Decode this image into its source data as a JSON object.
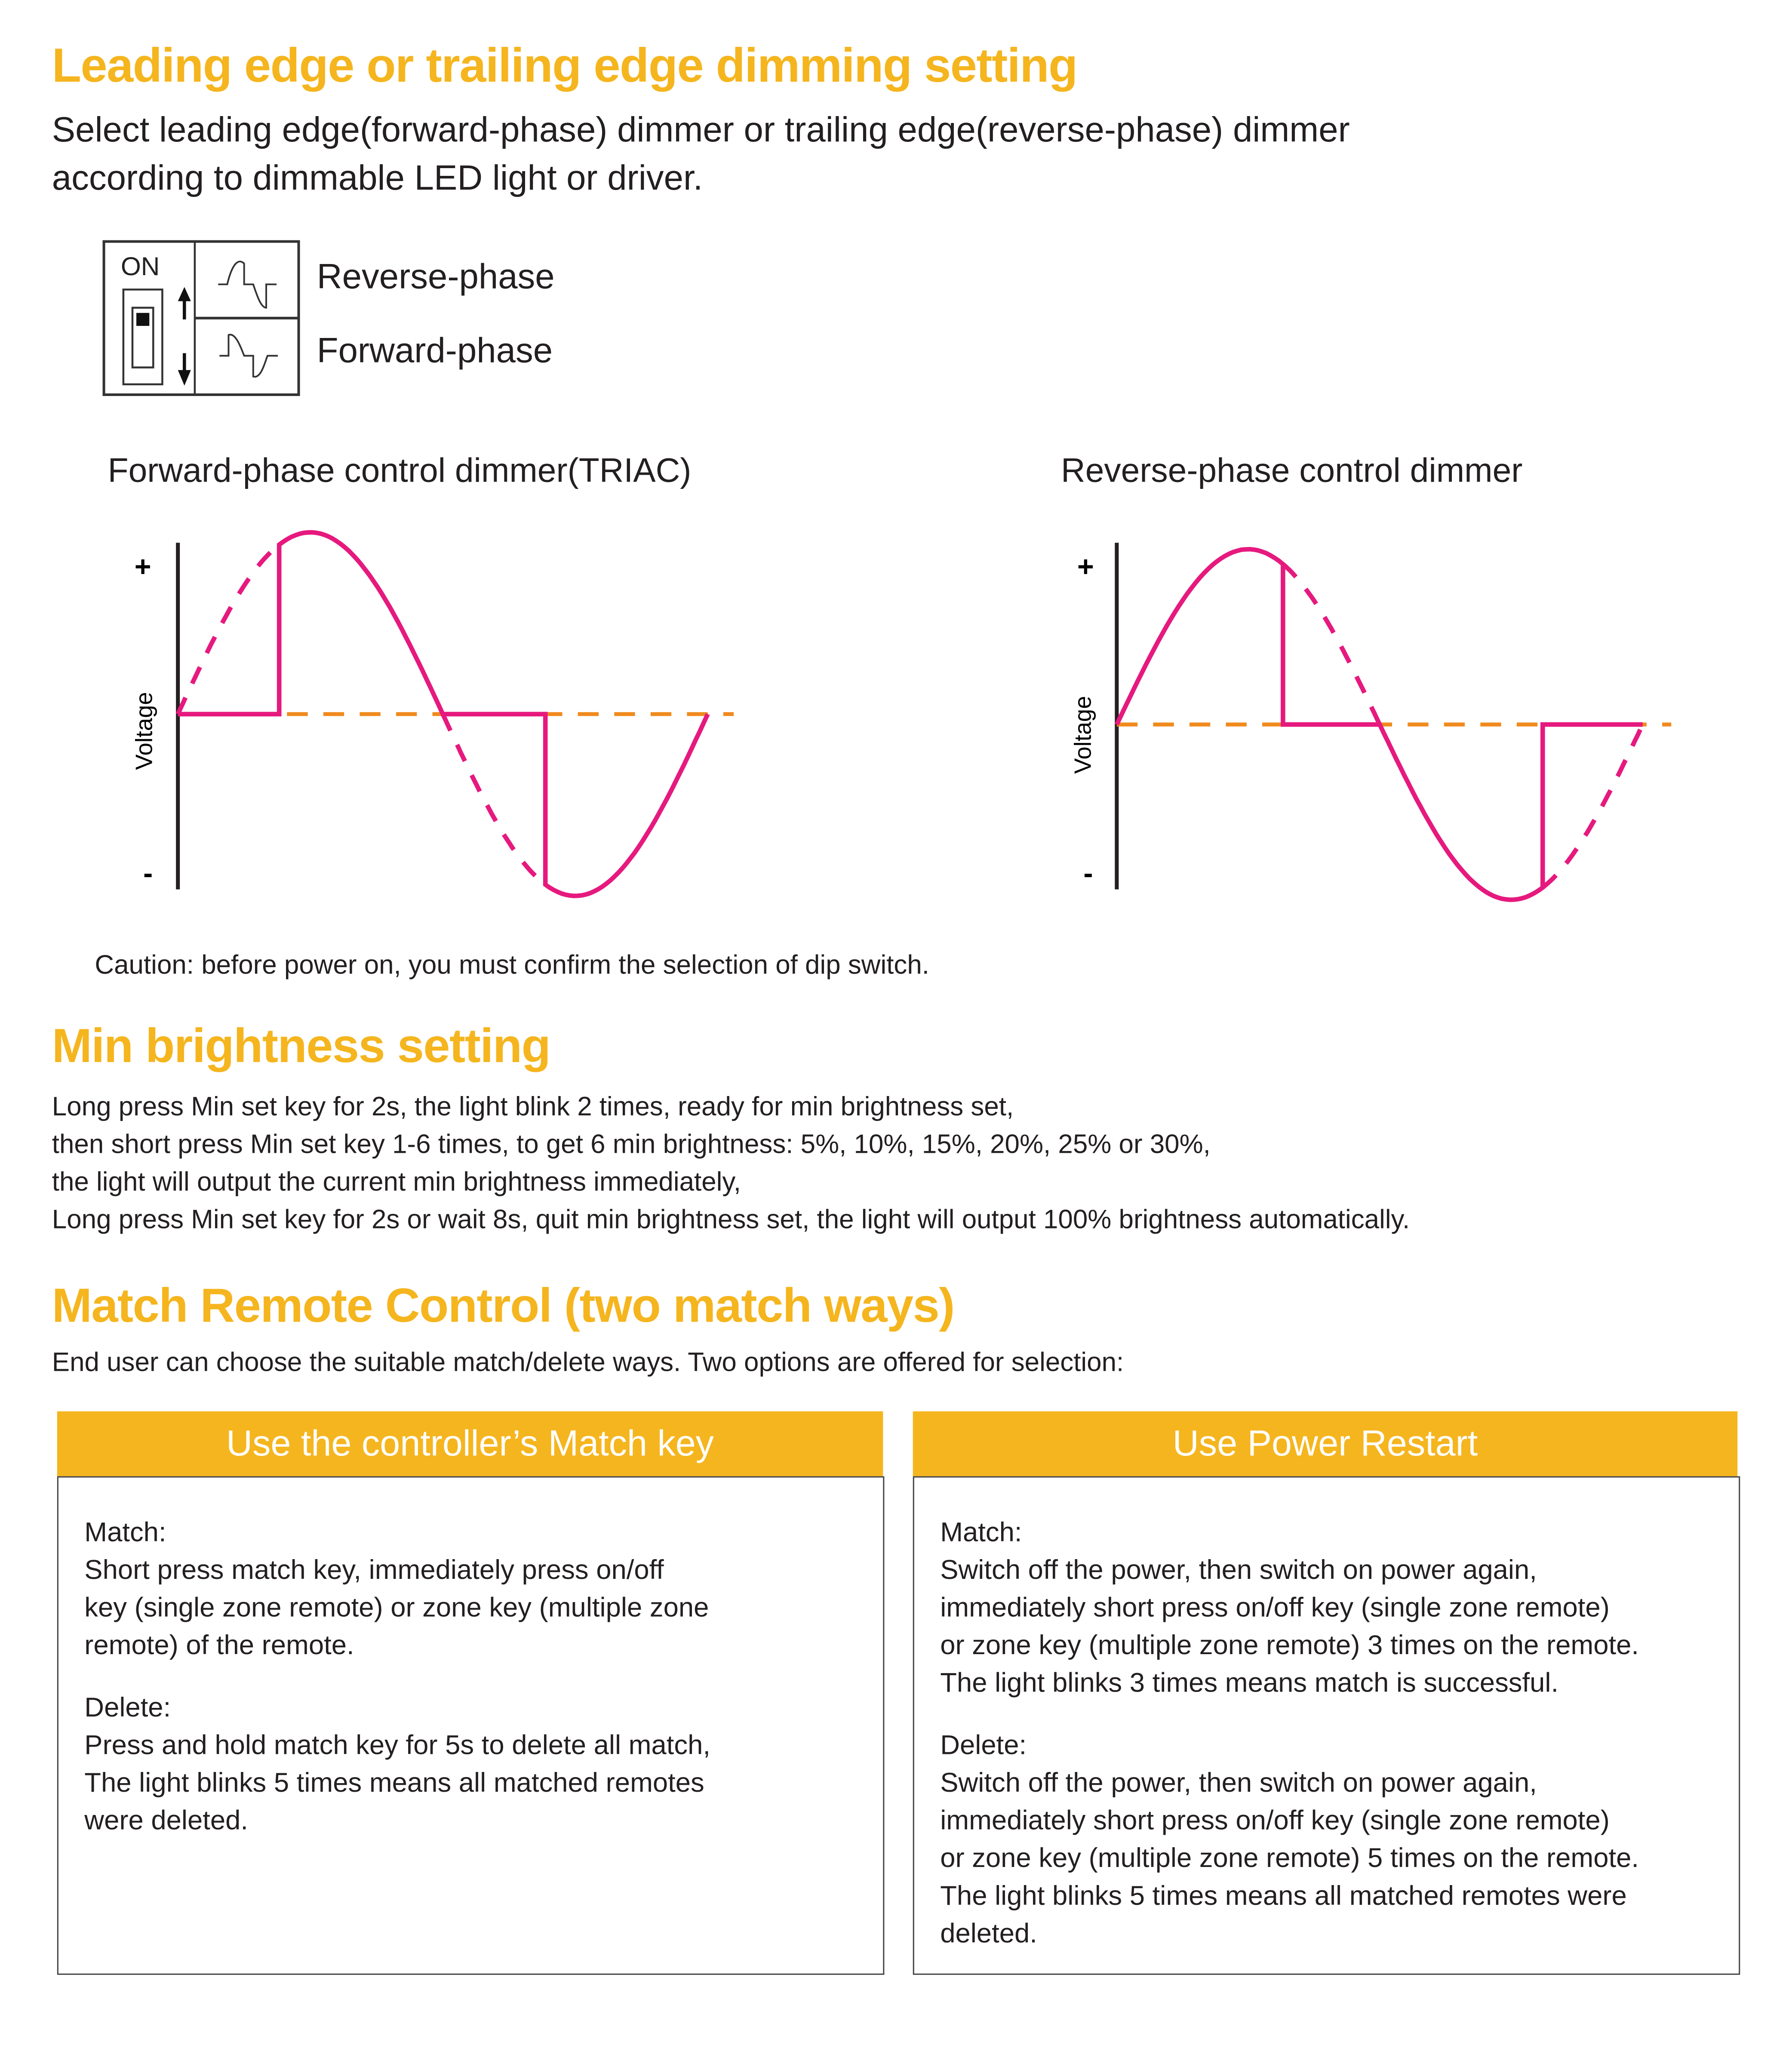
{
  "section1": {
    "title": "Leading edge or trailing edge dimming setting",
    "description_line1": "Select leading edge(forward-phase) dimmer or trailing edge(reverse-phase) dimmer",
    "description_line2": "according to dimmable LED light or driver.",
    "dip_switch": {
      "on_label": "ON",
      "options": [
        "Reverse-phase",
        "Forward-phase"
      ],
      "icons": [
        "dip-switch-icon",
        "arrow-up-icon",
        "arrow-down-icon",
        "reverse-phase-wave-icon",
        "forward-phase-wave-icon"
      ]
    },
    "diagrams": [
      {
        "title": "Forward-phase control dimmer(TRIAC)",
        "axis_label": "Voltage",
        "plus": "+",
        "minus": "-"
      },
      {
        "title": "Reverse-phase control dimmer",
        "axis_label": "Voltage",
        "plus": "+",
        "minus": "-"
      }
    ],
    "caution": "Caution: before power on, you must confirm the selection of dip switch.",
    "colors": {
      "waveform": "#e6197e",
      "zero_line": "#f08a1c",
      "accent": "#f5b51e"
    }
  },
  "section2": {
    "title": "Min brightness setting",
    "lines": [
      "Long press Min set key for 2s, the light blink 2 times, ready for min brightness set,",
      "then short press Min set key 1-6 times, to get 6 min brightness: 5%, 10%, 15%, 20%, 25% or 30%,",
      "the light will output the current min brightness immediately,",
      "Long press Min set key for 2s or wait 8s, quit min brightness set, the light will output 100% brightness automatically."
    ]
  },
  "section3": {
    "title": "Match Remote Control (two match ways)",
    "intro": "End user can choose the suitable match/delete ways. Two options are offered for selection:",
    "options": [
      {
        "header": "Use the controller’s Match key",
        "match_label": "Match:",
        "match_text": "Short press match key, immediately press on/off\nkey (single zone remote) or zone key (multiple zone\nremote) of the remote.",
        "delete_label": "Delete:",
        "delete_text": "Press and hold match key for 5s to delete all match,\nThe light blinks 5 times means all matched remotes\nwere deleted."
      },
      {
        "header": "Use Power Restart",
        "match_label": "Match:",
        "match_text": "Switch off the power, then switch on power again,\nimmediately short press on/off key (single zone remote)\nor zone key (multiple zone remote) 3 times on the remote.\nThe light blinks 3 times means match is successful.",
        "delete_label": "Delete:",
        "delete_text": "Switch off the power, then switch on power again,\nimmediately short press on/off key (single zone remote)\nor zone key (multiple zone remote) 5 times on the remote.\nThe light blinks 5 times means all matched remotes were\ndeleted."
      }
    ]
  }
}
